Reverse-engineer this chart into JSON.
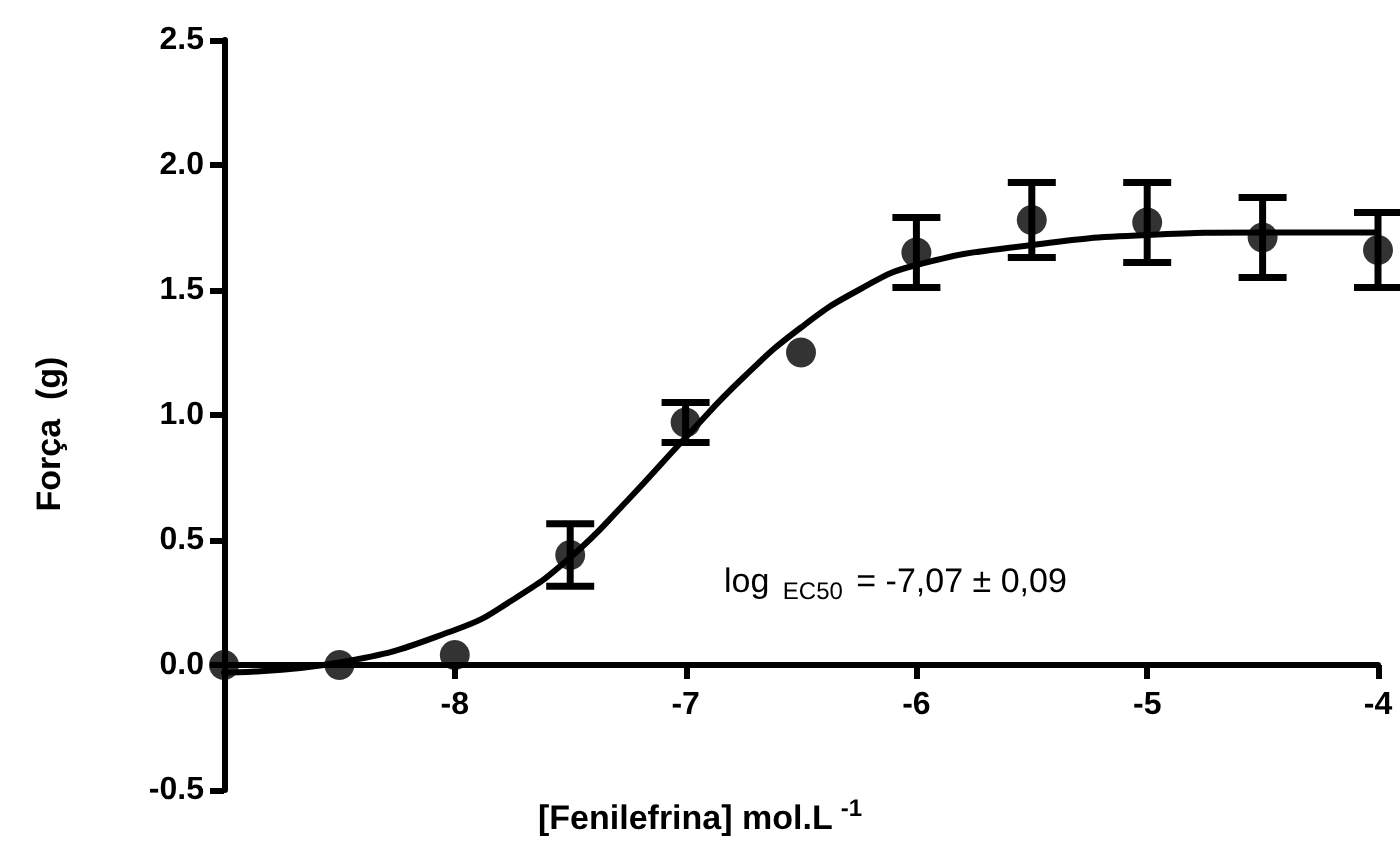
{
  "chart_data": {
    "type": "scatter",
    "xlabel": "[Fenilefrina] mol.L$^{-1}$",
    "ylabel": "Força  (g)",
    "annotations": [
      "log $_{EC50}$ = -7,07 ± 0,09"
    ],
    "xlim": [
      -9,
      -4
    ],
    "xticks": [
      -8,
      -7,
      -6,
      -5,
      -4
    ],
    "ylim": [
      -0.5,
      2.5
    ],
    "yticks": [
      {
        "value": -0.5,
        "label": "-0.5"
      },
      {
        "value": 0,
        "label": "0.0"
      },
      {
        "value": 0.5,
        "label": "0.5"
      },
      {
        "value": 1,
        "label": "1.0"
      },
      {
        "value": 1.5,
        "label": "1.5"
      },
      {
        "value": 2,
        "label": "2.0"
      },
      {
        "value": 2.5,
        "label": "2.5"
      }
    ],
    "grid": false,
    "marker": "circle",
    "series": [
      {
        "color": "#000000",
        "x": [
          -9,
          -8.5,
          -8,
          -7.5,
          -7,
          -6.5,
          -6,
          -5.5,
          -5,
          -4.5,
          -4
        ],
        "values": [
          0,
          0,
          0.04,
          0.44,
          0.97,
          1.25,
          1.65,
          1.78,
          1.77,
          1.71,
          1.66
        ],
        "errors": [
          null,
          null,
          null,
          0.125,
          0.08,
          null,
          0.14,
          0.15,
          0.16,
          0.16,
          0.15
        ]
      },
      {
        "type": "line",
        "color": "#000000",
        "line_style": "solid",
        "marker": "none",
        "x": [
          -9,
          -8.5,
          -8,
          -7.75,
          -7.5,
          -7.25,
          -7,
          -6.75,
          -6.5,
          -6.25,
          -6,
          -5.5,
          -5,
          -4.5,
          -4
        ],
        "values": [
          -0.03,
          0.01,
          0.14,
          0.26,
          0.43,
          0.66,
          0.91,
          1.15,
          1.35,
          1.5,
          1.6,
          1.68,
          1.72,
          1.73,
          1.73
        ]
      }
    ]
  }
}
